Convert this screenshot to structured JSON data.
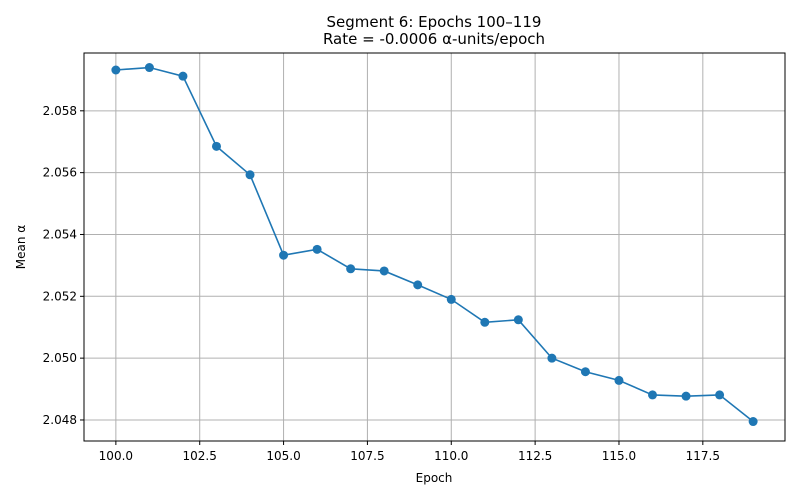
{
  "chart_data": {
    "type": "line",
    "title": "Segment 6: Epochs 100–119",
    "subtitle": "Rate = -0.0006 α-units/epoch",
    "xlabel": "Epoch",
    "ylabel": "Mean α",
    "xlim": [
      99.05,
      119.95
    ],
    "ylim": [
      2.04732,
      2.05987
    ],
    "x_ticks": [
      100.0,
      102.5,
      105.0,
      107.5,
      110.0,
      112.5,
      115.0,
      117.5
    ],
    "x_tick_labels": [
      "100.0",
      "102.5",
      "105.0",
      "107.5",
      "110.0",
      "112.5",
      "115.0",
      "117.5"
    ],
    "y_ticks": [
      2.048,
      2.05,
      2.052,
      2.054,
      2.056,
      2.058
    ],
    "y_tick_labels": [
      "2.048",
      "2.050",
      "2.052",
      "2.054",
      "2.056",
      "2.058"
    ],
    "grid": true,
    "line_color": "#1f77b4",
    "series": [
      {
        "x": [
          100,
          101,
          102,
          103,
          104,
          105,
          106,
          107,
          108,
          109,
          110,
          111,
          112,
          113,
          114,
          115,
          116,
          117,
          118,
          119
        ],
        "values": [
          2.05932,
          2.0594,
          2.05912,
          2.05685,
          2.05593,
          2.05333,
          2.05352,
          2.05289,
          2.05282,
          2.05237,
          2.0519,
          2.05116,
          2.05124,
          2.05,
          2.04956,
          2.04928,
          2.04881,
          2.04877,
          2.04881,
          2.04795
        ]
      }
    ]
  }
}
